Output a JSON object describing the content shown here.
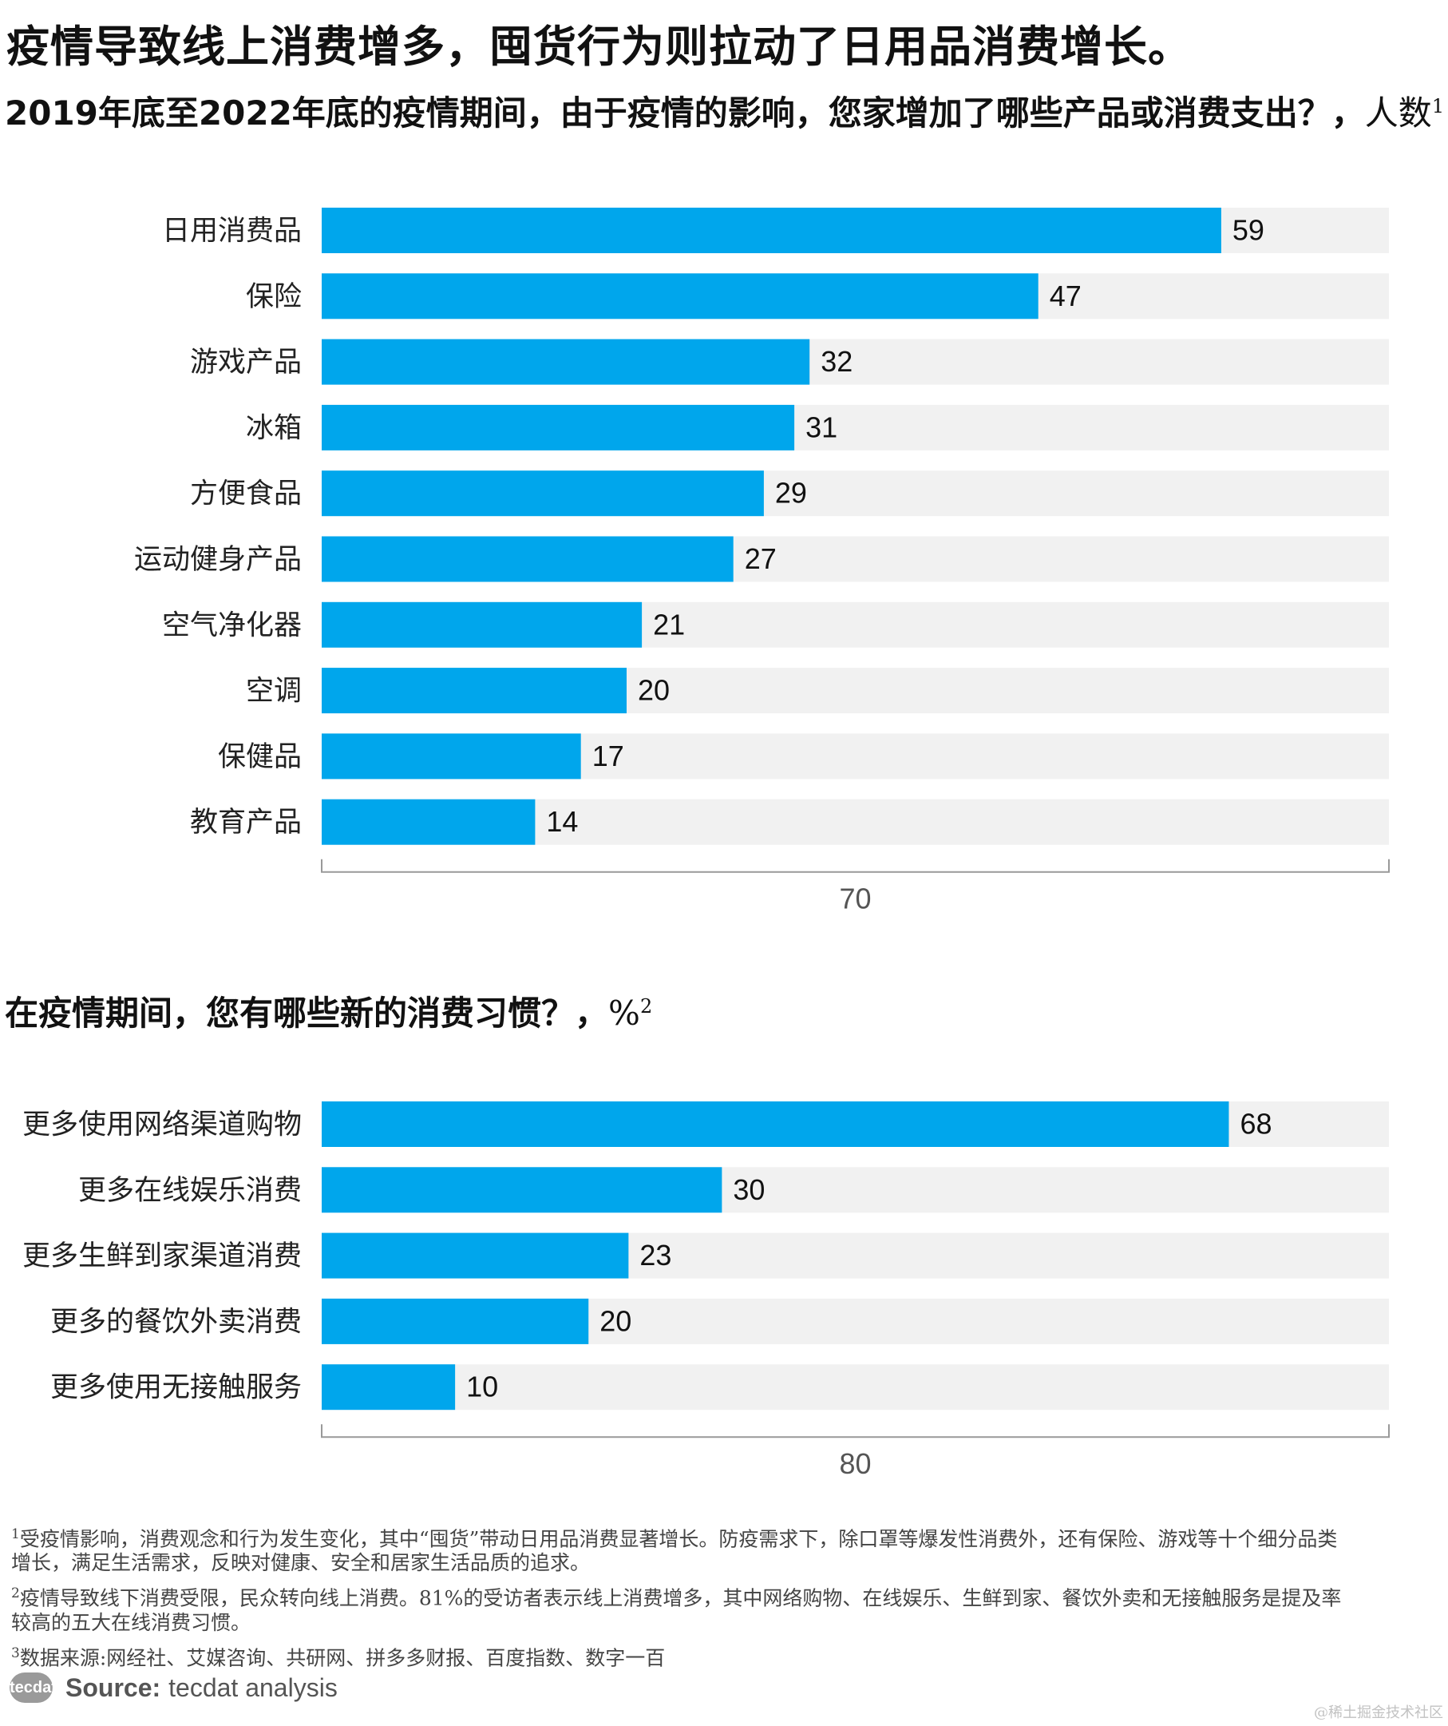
{
  "headline": "疫情导致线上消费增多，囤货行为则拉动了日用品消费增长。",
  "colors": {
    "bar": "#00A6EC",
    "track": "#F1F1F1",
    "axis": "#999999"
  },
  "chart_data": [
    {
      "type": "bar",
      "orientation": "horizontal",
      "title": "2019年底至2022年底的疫情期间，由于疫情的影响，您家增加了哪些产品或消费支出？，",
      "unit": "人数",
      "footnote_ref": "1",
      "categories": [
        "日用消费品",
        "保险",
        "游戏产品",
        "冰箱",
        "方便食品",
        "运动健身产品",
        "空气净化器",
        "空调",
        "保健品",
        "教育产品"
      ],
      "values": [
        59,
        47,
        32,
        31,
        29,
        27,
        21,
        20,
        17,
        14
      ],
      "xlim": [
        0,
        70
      ],
      "axis_max_label": "70"
    },
    {
      "type": "bar",
      "orientation": "horizontal",
      "title": "在疫情期间，您有哪些新的消费习惯？，",
      "unit": "%",
      "footnote_ref": "2",
      "categories": [
        "更多使用网络渠道购物",
        "更多在线娱乐消费",
        "更多生鲜到家渠道消费",
        "更多的餐饮外卖消费",
        "更多使用无接触服务"
      ],
      "values": [
        68,
        30,
        23,
        20,
        10
      ],
      "xlim": [
        0,
        80
      ],
      "axis_max_label": "80"
    }
  ],
  "footnotes": [
    {
      "num": "1",
      "text": "受疫情影响，消费观念和行为发生变化，其中“囤货”带动日用品消费显著增长。防疫需求下，除口罩等爆发性消费外，还有保险、游戏等十个细分品类\n增长，满足生活需求，反映对健康、安全和居家生活品质的追求。"
    },
    {
      "num": "2",
      "text": "疫情导致线下消费受限，民众转向线上消费。81%的受访者表示线上消费增多，其中网络购物、在线娱乐、生鲜到家、餐饮外卖和无接触服务是提及率\n较高的五大在线消费习惯。"
    },
    {
      "num": "3",
      "text": "数据来源:网经社、艾媒咨询、共研网、拼多多财报、百度指数、数字一百"
    }
  ],
  "source": {
    "logo_text": "tecdat",
    "key": "Source:",
    "value": "tecdat analysis"
  },
  "watermark": "@稀土掘金技术社区"
}
